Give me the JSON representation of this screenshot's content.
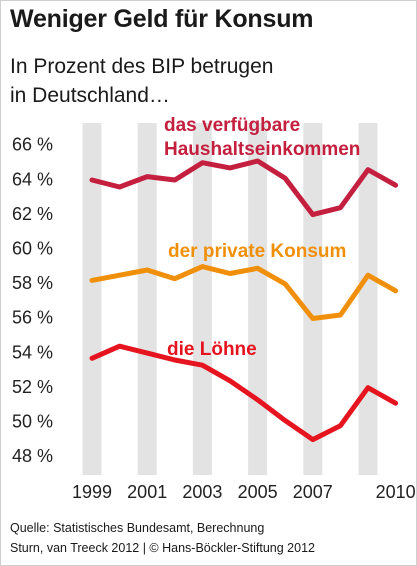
{
  "header": {
    "title": "Weniger Geld für Konsum",
    "subtitle_line1": "In Prozent des BIP betrugen",
    "subtitle_line2": "in Deutschland…"
  },
  "footer": {
    "source_line1": "Quelle: Statistisches Bundesamt, Berechnung",
    "source_line2": "Sturn, van Treeck 2012 | © Hans-Böckler-Stiftung 2012"
  },
  "chart_data": {
    "type": "line",
    "title": "Weniger Geld für Konsum",
    "subtitle": "In Prozent des BIP betrugen in Deutschland…",
    "x": [
      1999,
      2000,
      2001,
      2002,
      2003,
      2004,
      2005,
      2006,
      2007,
      2008,
      2009,
      2010
    ],
    "x_tick_labels": [
      "1999",
      "2001",
      "2003",
      "2005",
      "2007",
      "2010"
    ],
    "y_tick_labels": [
      "66 %",
      "64 %",
      "62 %",
      "60 %",
      "58 %",
      "56 %",
      "54 %",
      "52 %",
      "50 %",
      "48 %"
    ],
    "ylim": [
      48,
      66
    ],
    "grid": "vertical bands",
    "series": [
      {
        "name": "das verfügbare Haushaltseinkommen",
        "label_line1": "das verfügbare",
        "label_line2": "Haushaltseinkommen",
        "color": "#c41f3e",
        "values": [
          63.9,
          63.5,
          64.1,
          63.9,
          64.9,
          64.6,
          65.0,
          64.0,
          61.9,
          62.3,
          64.5,
          63.6
        ]
      },
      {
        "name": "der private Konsum",
        "label_line1": "der private Konsum",
        "color": "#f0900a",
        "values": [
          58.1,
          58.4,
          58.7,
          58.2,
          58.9,
          58.5,
          58.8,
          57.9,
          55.9,
          56.1,
          58.4,
          57.5
        ]
      },
      {
        "name": "die Löhne",
        "label_line1": "die Löhne",
        "color": "#e5141e",
        "values": [
          53.6,
          54.3,
          53.9,
          53.5,
          53.2,
          52.3,
          51.2,
          50.0,
          48.9,
          49.7,
          51.9,
          51.0
        ]
      }
    ]
  }
}
